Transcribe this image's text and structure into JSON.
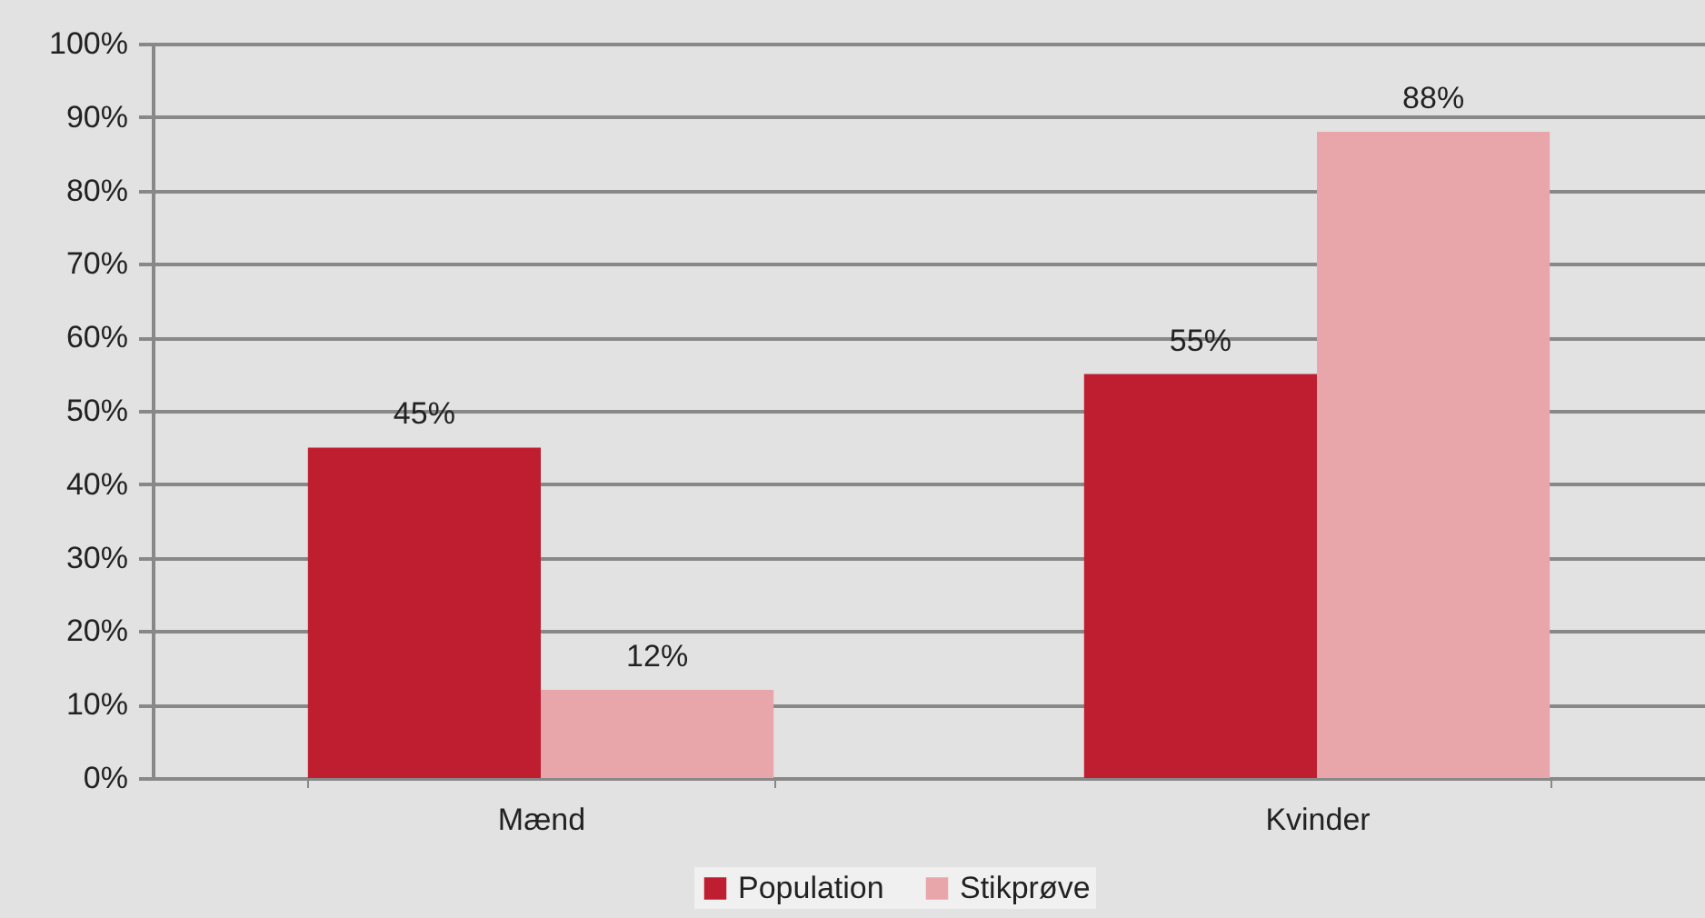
{
  "chart_data": {
    "type": "bar",
    "categories": [
      "Mænd",
      "Kvinder"
    ],
    "series": [
      {
        "name": "Population",
        "color": "#be1e2f",
        "values": [
          45,
          55
        ],
        "value_labels": [
          "45%",
          "55%"
        ]
      },
      {
        "name": "Stikprøve",
        "color": "#e8a6ab",
        "values": [
          12,
          88
        ],
        "value_labels": [
          "12%",
          "88%"
        ]
      }
    ],
    "ylim": [
      0,
      100
    ],
    "yticks": [
      {
        "value": 0,
        "label": "0%"
      },
      {
        "value": 10,
        "label": "10%"
      },
      {
        "value": 20,
        "label": "20%"
      },
      {
        "value": 30,
        "label": "30%"
      },
      {
        "value": 40,
        "label": "40%"
      },
      {
        "value": 50,
        "label": "50%"
      },
      {
        "value": 60,
        "label": "60%"
      },
      {
        "value": 70,
        "label": "70%"
      },
      {
        "value": 80,
        "label": "80%"
      },
      {
        "value": 90,
        "label": "90%"
      },
      {
        "value": 100,
        "label": "100%"
      }
    ],
    "grid": "y",
    "legend": "bottom"
  }
}
